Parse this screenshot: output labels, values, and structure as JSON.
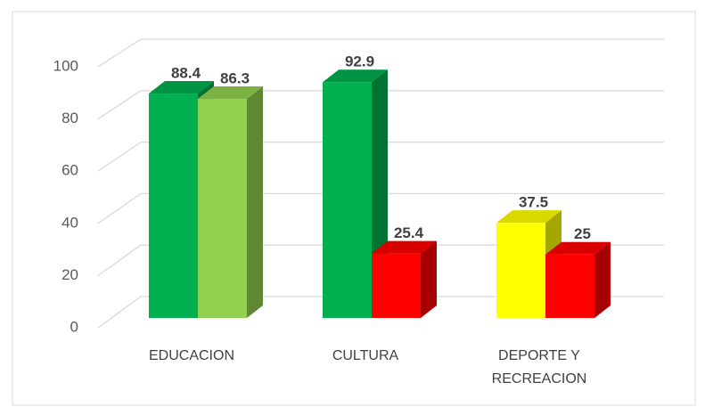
{
  "chart_data": {
    "type": "bar3d",
    "categories": [
      "EDUCACION",
      "CULTURA",
      "DEPORTE Y RECREACION"
    ],
    "series": [
      {
        "values": [
          88.4,
          92.9,
          37.5
        ],
        "colors": [
          "#00b050",
          "#00b050",
          "#ffff00"
        ]
      },
      {
        "values": [
          86.3,
          25.4,
          25
        ],
        "colors": [
          "#92d050",
          "#ff0000",
          "#ff0000"
        ]
      }
    ],
    "ylim": [
      0,
      100
    ],
    "yticks": [
      0,
      20,
      40,
      60,
      80,
      100
    ],
    "grid": true
  }
}
